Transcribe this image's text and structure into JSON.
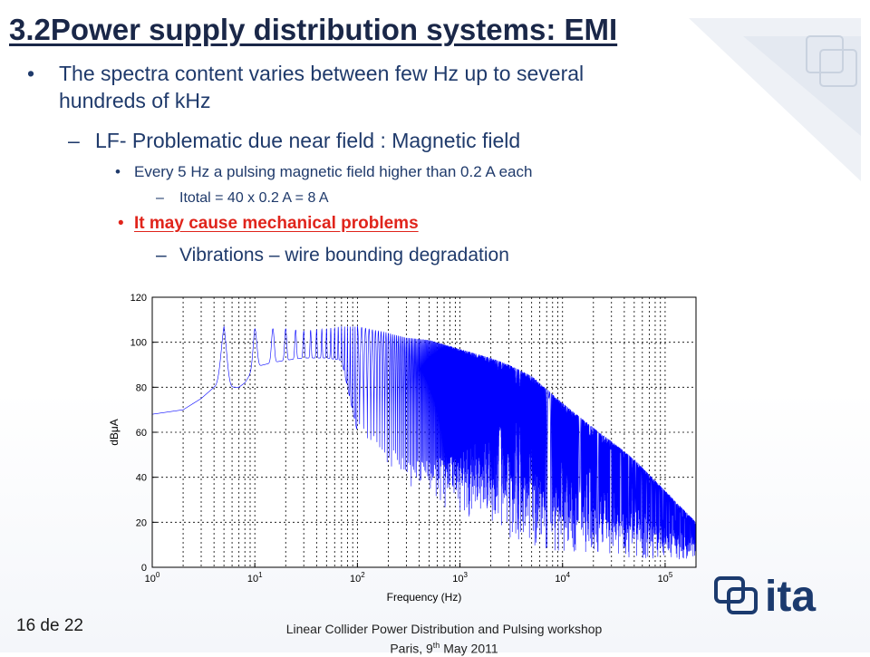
{
  "slide": {
    "title": "3.2Power supply distribution systems: EMI",
    "bullets": {
      "b1_line1": "The spectra content varies between few Hz up to several",
      "b1_line2": "hundreds of kHz",
      "b2_prefix": "LF",
      "b2_text": "- Problematic due near field : Magnetic field",
      "b3": "Every 5 Hz a pulsing magnetic field  higher than 0.2 A each",
      "b4": "Itotal = 40 x 0.2 A = 8 A",
      "b5": "It may cause mechanical problems",
      "b6": "Vibrations – wire bounding degradation"
    },
    "markers": {
      "bullet": "•",
      "dash": "–"
    },
    "page_number": "16 de 22",
    "footer_line1": "Linear Collider Power Distribution and Pulsing workshop",
    "footer_line2_a": "Paris,  9",
    "footer_line2_sup": "th",
    "footer_line2_b": " May  2011",
    "logo_text": "ita",
    "colors": {
      "title": "#1a2748",
      "text": "#1f3a6b",
      "emphasis": "#e0241b",
      "series": "#0000ff",
      "logo": "#1b3a6e"
    }
  },
  "chart_data": {
    "type": "line",
    "xlabel": "Frequency (Hz)",
    "ylabel": "dBμA",
    "x_scale": "log",
    "xlim": [
      1,
      200000
    ],
    "ylim": [
      0,
      120
    ],
    "yticks": [
      0,
      20,
      40,
      60,
      80,
      100,
      120
    ],
    "xticks": [
      {
        "base": "10",
        "exp": "0"
      },
      {
        "base": "10",
        "exp": "1"
      },
      {
        "base": "10",
        "exp": "2"
      },
      {
        "base": "10",
        "exp": "3"
      },
      {
        "base": "10",
        "exp": "4"
      },
      {
        "base": "10",
        "exp": "5"
      }
    ],
    "grid": true,
    "series": [
      {
        "x": [
          1,
          2,
          3,
          4,
          5,
          6,
          7,
          8,
          10,
          15,
          20,
          30,
          50,
          70,
          100,
          200,
          300,
          500,
          1000,
          2000,
          3000,
          5000,
          10000,
          20000,
          30000,
          50000,
          100000,
          200000
        ],
        "peak": [
          68,
          70,
          75,
          81,
          107,
          84,
          80,
          82,
          106,
          106,
          106,
          105,
          106,
          107,
          107,
          104,
          102,
          101,
          97,
          93,
          90,
          85,
          73,
          62,
          56,
          48,
          34,
          20
        ],
        "floor": [
          68,
          70,
          75,
          80,
          80,
          80,
          80,
          82,
          89,
          91,
          92,
          93,
          93,
          92,
          60,
          45,
          35,
          30,
          20,
          15,
          12,
          8,
          5,
          4,
          4,
          3,
          3,
          3
        ]
      }
    ]
  }
}
